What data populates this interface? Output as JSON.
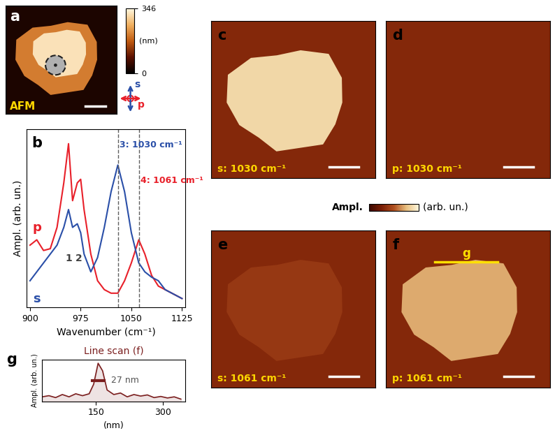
{
  "chart_data": [
    {
      "type": "image",
      "panel": "a",
      "label": "AFM",
      "colorbar_range": [
        0,
        346
      ],
      "colorbar_ticks": [
        0,
        346
      ],
      "colorbar_label": "(nm)",
      "polarization": [
        "s",
        "p"
      ]
    },
    {
      "type": "line",
      "panel": "b",
      "xlabel": "Wavenumber (cm⁻¹)",
      "ylabel": "Ampl. (arb. un.)",
      "x": [
        900,
        910,
        920,
        930,
        940,
        950,
        957,
        963,
        970,
        975,
        980,
        990,
        1000,
        1010,
        1020,
        1030,
        1040,
        1050,
        1061,
        1070,
        1080,
        1090,
        1100,
        1110,
        1125
      ],
      "series": [
        {
          "name": "p",
          "color": "#e8202a",
          "values": [
            0.35,
            0.38,
            0.32,
            0.33,
            0.45,
            0.7,
            0.92,
            0.6,
            0.7,
            0.72,
            0.55,
            0.3,
            0.15,
            0.1,
            0.08,
            0.08,
            0.15,
            0.25,
            0.38,
            0.3,
            0.18,
            0.12,
            0.1,
            0.08,
            0.05
          ]
        },
        {
          "name": "s",
          "color": "#2a4fa8",
          "values": [
            0.15,
            0.2,
            0.25,
            0.3,
            0.35,
            0.45,
            0.55,
            0.45,
            0.47,
            0.42,
            0.3,
            0.2,
            0.28,
            0.45,
            0.65,
            0.8,
            0.65,
            0.42,
            0.25,
            0.2,
            0.17,
            0.15,
            0.1,
            0.08,
            0.05
          ]
        }
      ],
      "peaks": [
        {
          "label": "1",
          "x": 957,
          "color": "#404040"
        },
        {
          "label": "2",
          "x": 972,
          "color": "#404040"
        },
        {
          "label": "3: 1030 cm⁻¹",
          "x": 1030,
          "color": "#2a4fa8",
          "line_style": "dashed"
        },
        {
          "label": "4: 1061 cm⁻¹",
          "x": 1061,
          "color": "#e8202a",
          "line_style": "dashed"
        }
      ],
      "xlim": [
        895,
        1130
      ],
      "xticks": [
        900,
        975,
        1050,
        1125
      ],
      "ylim": [
        0,
        1
      ],
      "tick_labels": "x"
    },
    {
      "type": "colorbar",
      "title": "Ampl.",
      "label": "(arb. un.)"
    },
    {
      "type": "image",
      "panel": "c",
      "label": "s: 1030 cm⁻¹",
      "intensity": 0.85
    },
    {
      "type": "image",
      "panel": "d",
      "label": "p: 1030 cm⁻¹",
      "intensity": 0.3
    },
    {
      "type": "image",
      "panel": "e",
      "label": "s: 1061 cm⁻¹",
      "intensity": 0.38
    },
    {
      "type": "image",
      "panel": "f",
      "label": "p: 1061 cm⁻¹",
      "intensity": 0.7,
      "line_scan_label": "g"
    },
    {
      "type": "line",
      "panel": "g",
      "title": "Line scan (f)",
      "xlabel": "(nm)",
      "ylabel": "Ampl. (arb. un.)",
      "x": [
        30,
        45,
        60,
        75,
        90,
        105,
        120,
        135,
        145,
        155,
        165,
        175,
        190,
        205,
        220,
        235,
        250,
        265,
        280,
        295,
        310,
        325,
        340
      ],
      "values": [
        0.12,
        0.15,
        0.1,
        0.18,
        0.12,
        0.2,
        0.15,
        0.2,
        0.45,
        1.0,
        0.8,
        0.3,
        0.18,
        0.22,
        0.12,
        0.18,
        0.14,
        0.17,
        0.1,
        0.13,
        0.09,
        0.12,
        0.06
      ],
      "color": "#7b1f1f",
      "fwhm": {
        "label": "27 nm",
        "from": 142,
        "to": 169,
        "y": 0.55
      },
      "xlim": [
        30,
        350
      ],
      "xticks": [
        150,
        300
      ],
      "ylim": [
        0,
        1.1
      ],
      "tick_labels": "x"
    }
  ]
}
